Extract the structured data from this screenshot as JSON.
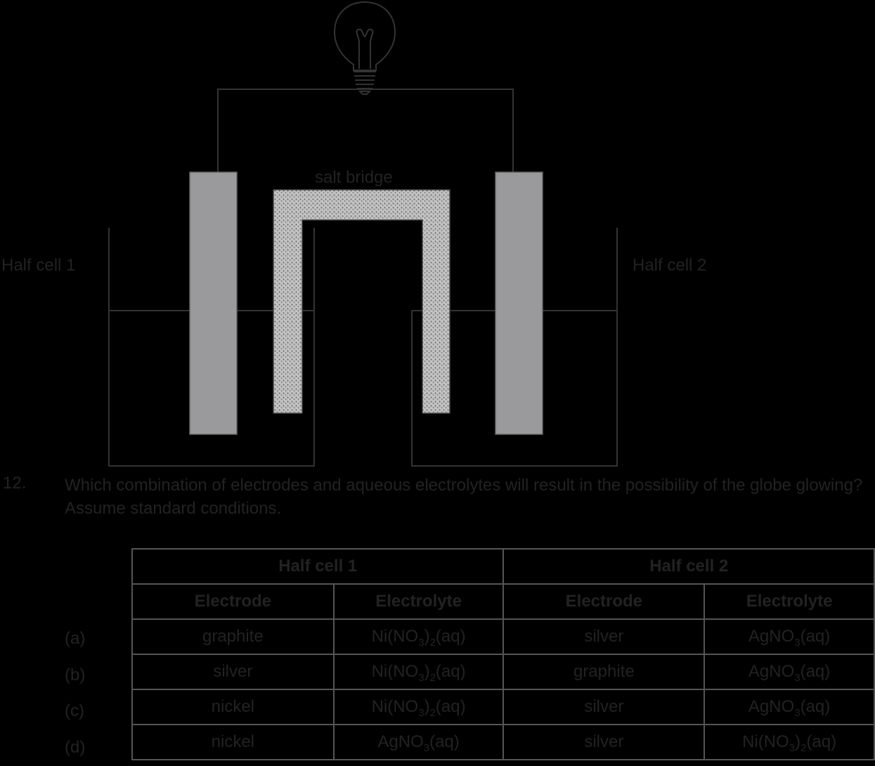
{
  "diagram": {
    "label_salt_bridge": "salt bridge",
    "label_half_cell_1": "Half cell 1",
    "label_half_cell_2": "Half cell 2"
  },
  "question": {
    "number": "12.",
    "text": "Which combination of electrodes and aqueous electrolytes will result in the possibility of the globe glowing? Assume standard conditions."
  },
  "table": {
    "group_headers": [
      "Half cell 1",
      "Half cell 2"
    ],
    "sub_headers": [
      "Electrode",
      "Electrolyte",
      "Electrode",
      "Electrolyte"
    ],
    "rows": [
      {
        "label": "(a)",
        "hc1_electrode": "graphite",
        "hc1_electrolyte": "Ni(NO3)2(aq)",
        "hc2_electrode": "silver",
        "hc2_electrolyte": "AgNO3(aq)"
      },
      {
        "label": "(b)",
        "hc1_electrode": "silver",
        "hc1_electrolyte": "Ni(NO3)2(aq)",
        "hc2_electrode": "graphite",
        "hc2_electrolyte": "AgNO3(aq)"
      },
      {
        "label": "(c)",
        "hc1_electrode": "nickel",
        "hc1_electrolyte": "Ni(NO3)2(aq)",
        "hc2_electrode": "silver",
        "hc2_electrolyte": "AgNO3(aq)"
      },
      {
        "label": "(d)",
        "hc1_electrode": "nickel",
        "hc1_electrolyte": "AgNO3(aq)",
        "hc2_electrode": "silver",
        "hc2_electrolyte": "Ni(NO3)2(aq)"
      }
    ]
  }
}
